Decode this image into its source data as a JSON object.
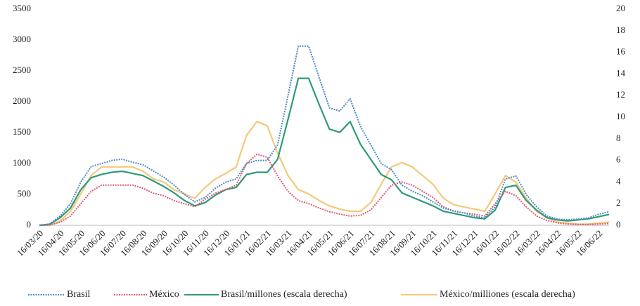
{
  "chart_data": {
    "type": "line",
    "categories": [
      "16/03/20",
      null,
      "16/04/20",
      null,
      "16/05/20",
      null,
      "16/06/20",
      null,
      "16/07/20",
      null,
      "16/08/20",
      null,
      "16/09/20",
      null,
      "16/10/20",
      null,
      "16/11/20",
      null,
      "16/12/20",
      null,
      "16/01/21",
      null,
      "16/02/21",
      null,
      "16/03/21",
      null,
      "16/04/21",
      null,
      "16/05/21",
      null,
      "16/06/21",
      null,
      "16/07/21",
      null,
      "16/08/21",
      null,
      "16/09/21",
      null,
      "16/10/21",
      null,
      "16/11/21",
      null,
      "16/12/21",
      null,
      "16/01/22",
      null,
      "16/02/22",
      null,
      "16/03/22",
      null,
      "16/04/22",
      null,
      "16/05/22",
      null,
      "16/06/22",
      null
    ],
    "ylim": [
      0,
      3500
    ],
    "yticks": [
      0,
      500,
      1000,
      1500,
      2000,
      2500,
      3000,
      3500
    ],
    "y2lim": [
      0,
      20
    ],
    "y2ticks": [
      0,
      2,
      4,
      6,
      8,
      10,
      12,
      14,
      16,
      18,
      20
    ],
    "legend": "bottom",
    "series": [
      {
        "name": "Brasil",
        "color": "#4a8bc9",
        "style": "dotted",
        "values": [
          0,
          20,
          150,
          350,
          700,
          950,
          1000,
          1050,
          1070,
          1020,
          980,
          880,
          780,
          650,
          500,
          380,
          450,
          600,
          700,
          750,
          1000,
          1050,
          1050,
          1300,
          2100,
          2900,
          2900,
          2400,
          1900,
          1850,
          2050,
          1600,
          1300,
          1000,
          900,
          650,
          550,
          480,
          380,
          280,
          230,
          200,
          150,
          120,
          300,
          750,
          800,
          500,
          300,
          150,
          100,
          90,
          100,
          120,
          180,
          220
        ]
      },
      {
        "name": "México",
        "color": "#e05a6e",
        "style": "dotted",
        "values": [
          0,
          5,
          50,
          150,
          350,
          550,
          650,
          650,
          650,
          650,
          600,
          520,
          480,
          400,
          350,
          300,
          420,
          520,
          580,
          650,
          1000,
          1150,
          1100,
          800,
          550,
          400,
          350,
          280,
          220,
          180,
          150,
          160,
          250,
          450,
          650,
          700,
          650,
          550,
          450,
          300,
          230,
          200,
          180,
          150,
          350,
          550,
          480,
          300,
          150,
          80,
          40,
          20,
          15,
          15,
          20,
          30
        ]
      },
      {
        "name": "Brasil/millones (escala derecha)",
        "color": "#2e9a78",
        "style": "solid",
        "axis": "y2",
        "values": [
          0,
          0.1,
          0.7,
          1.6,
          3.3,
          4.4,
          4.7,
          4.9,
          5.0,
          4.8,
          4.6,
          4.1,
          3.6,
          3.0,
          2.3,
          1.8,
          2.1,
          2.8,
          3.3,
          3.5,
          4.7,
          4.9,
          4.9,
          6.1,
          9.8,
          13.6,
          13.6,
          11.2,
          8.9,
          8.6,
          9.6,
          7.5,
          6.1,
          4.7,
          4.2,
          3.0,
          2.6,
          2.2,
          1.8,
          1.3,
          1.1,
          0.9,
          0.7,
          0.6,
          1.4,
          3.5,
          3.7,
          2.3,
          1.4,
          0.7,
          0.5,
          0.4,
          0.5,
          0.6,
          0.8,
          1.0
        ]
      },
      {
        "name": "México/milliones (escala derecha)",
        "color": "#f5c97a",
        "style": "solid",
        "axis": "y2",
        "values": [
          0,
          0,
          0.4,
          1.3,
          2.9,
          4.6,
          5.4,
          5.4,
          5.4,
          5.4,
          5.0,
          4.3,
          4.0,
          3.3,
          2.9,
          2.5,
          3.5,
          4.3,
          4.8,
          5.4,
          8.3,
          9.6,
          9.2,
          6.7,
          4.6,
          3.3,
          2.9,
          2.3,
          1.8,
          1.5,
          1.3,
          1.3,
          2.1,
          3.8,
          5.4,
          5.8,
          5.4,
          4.6,
          3.8,
          2.5,
          1.9,
          1.7,
          1.5,
          1.3,
          2.9,
          4.6,
          4.0,
          2.5,
          1.3,
          0.7,
          0.3,
          0.2,
          0.1,
          0.1,
          0.2,
          0.3
        ]
      }
    ]
  }
}
